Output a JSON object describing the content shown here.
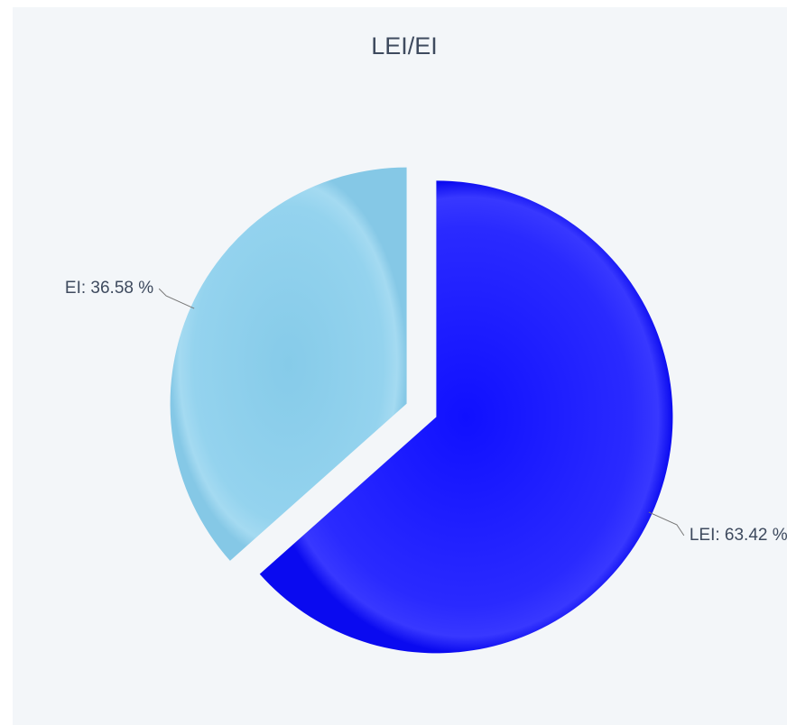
{
  "chart_data": {
    "type": "pie",
    "title": "LEI/EI",
    "categories": [
      "LEI",
      "EI"
    ],
    "values": [
      63.42,
      36.58
    ],
    "value_labels": [
      "LEI: 63.42 %",
      "EI: 36.58 %"
    ],
    "colors": [
      "#1414ff",
      "#8fd0eb"
    ]
  }
}
